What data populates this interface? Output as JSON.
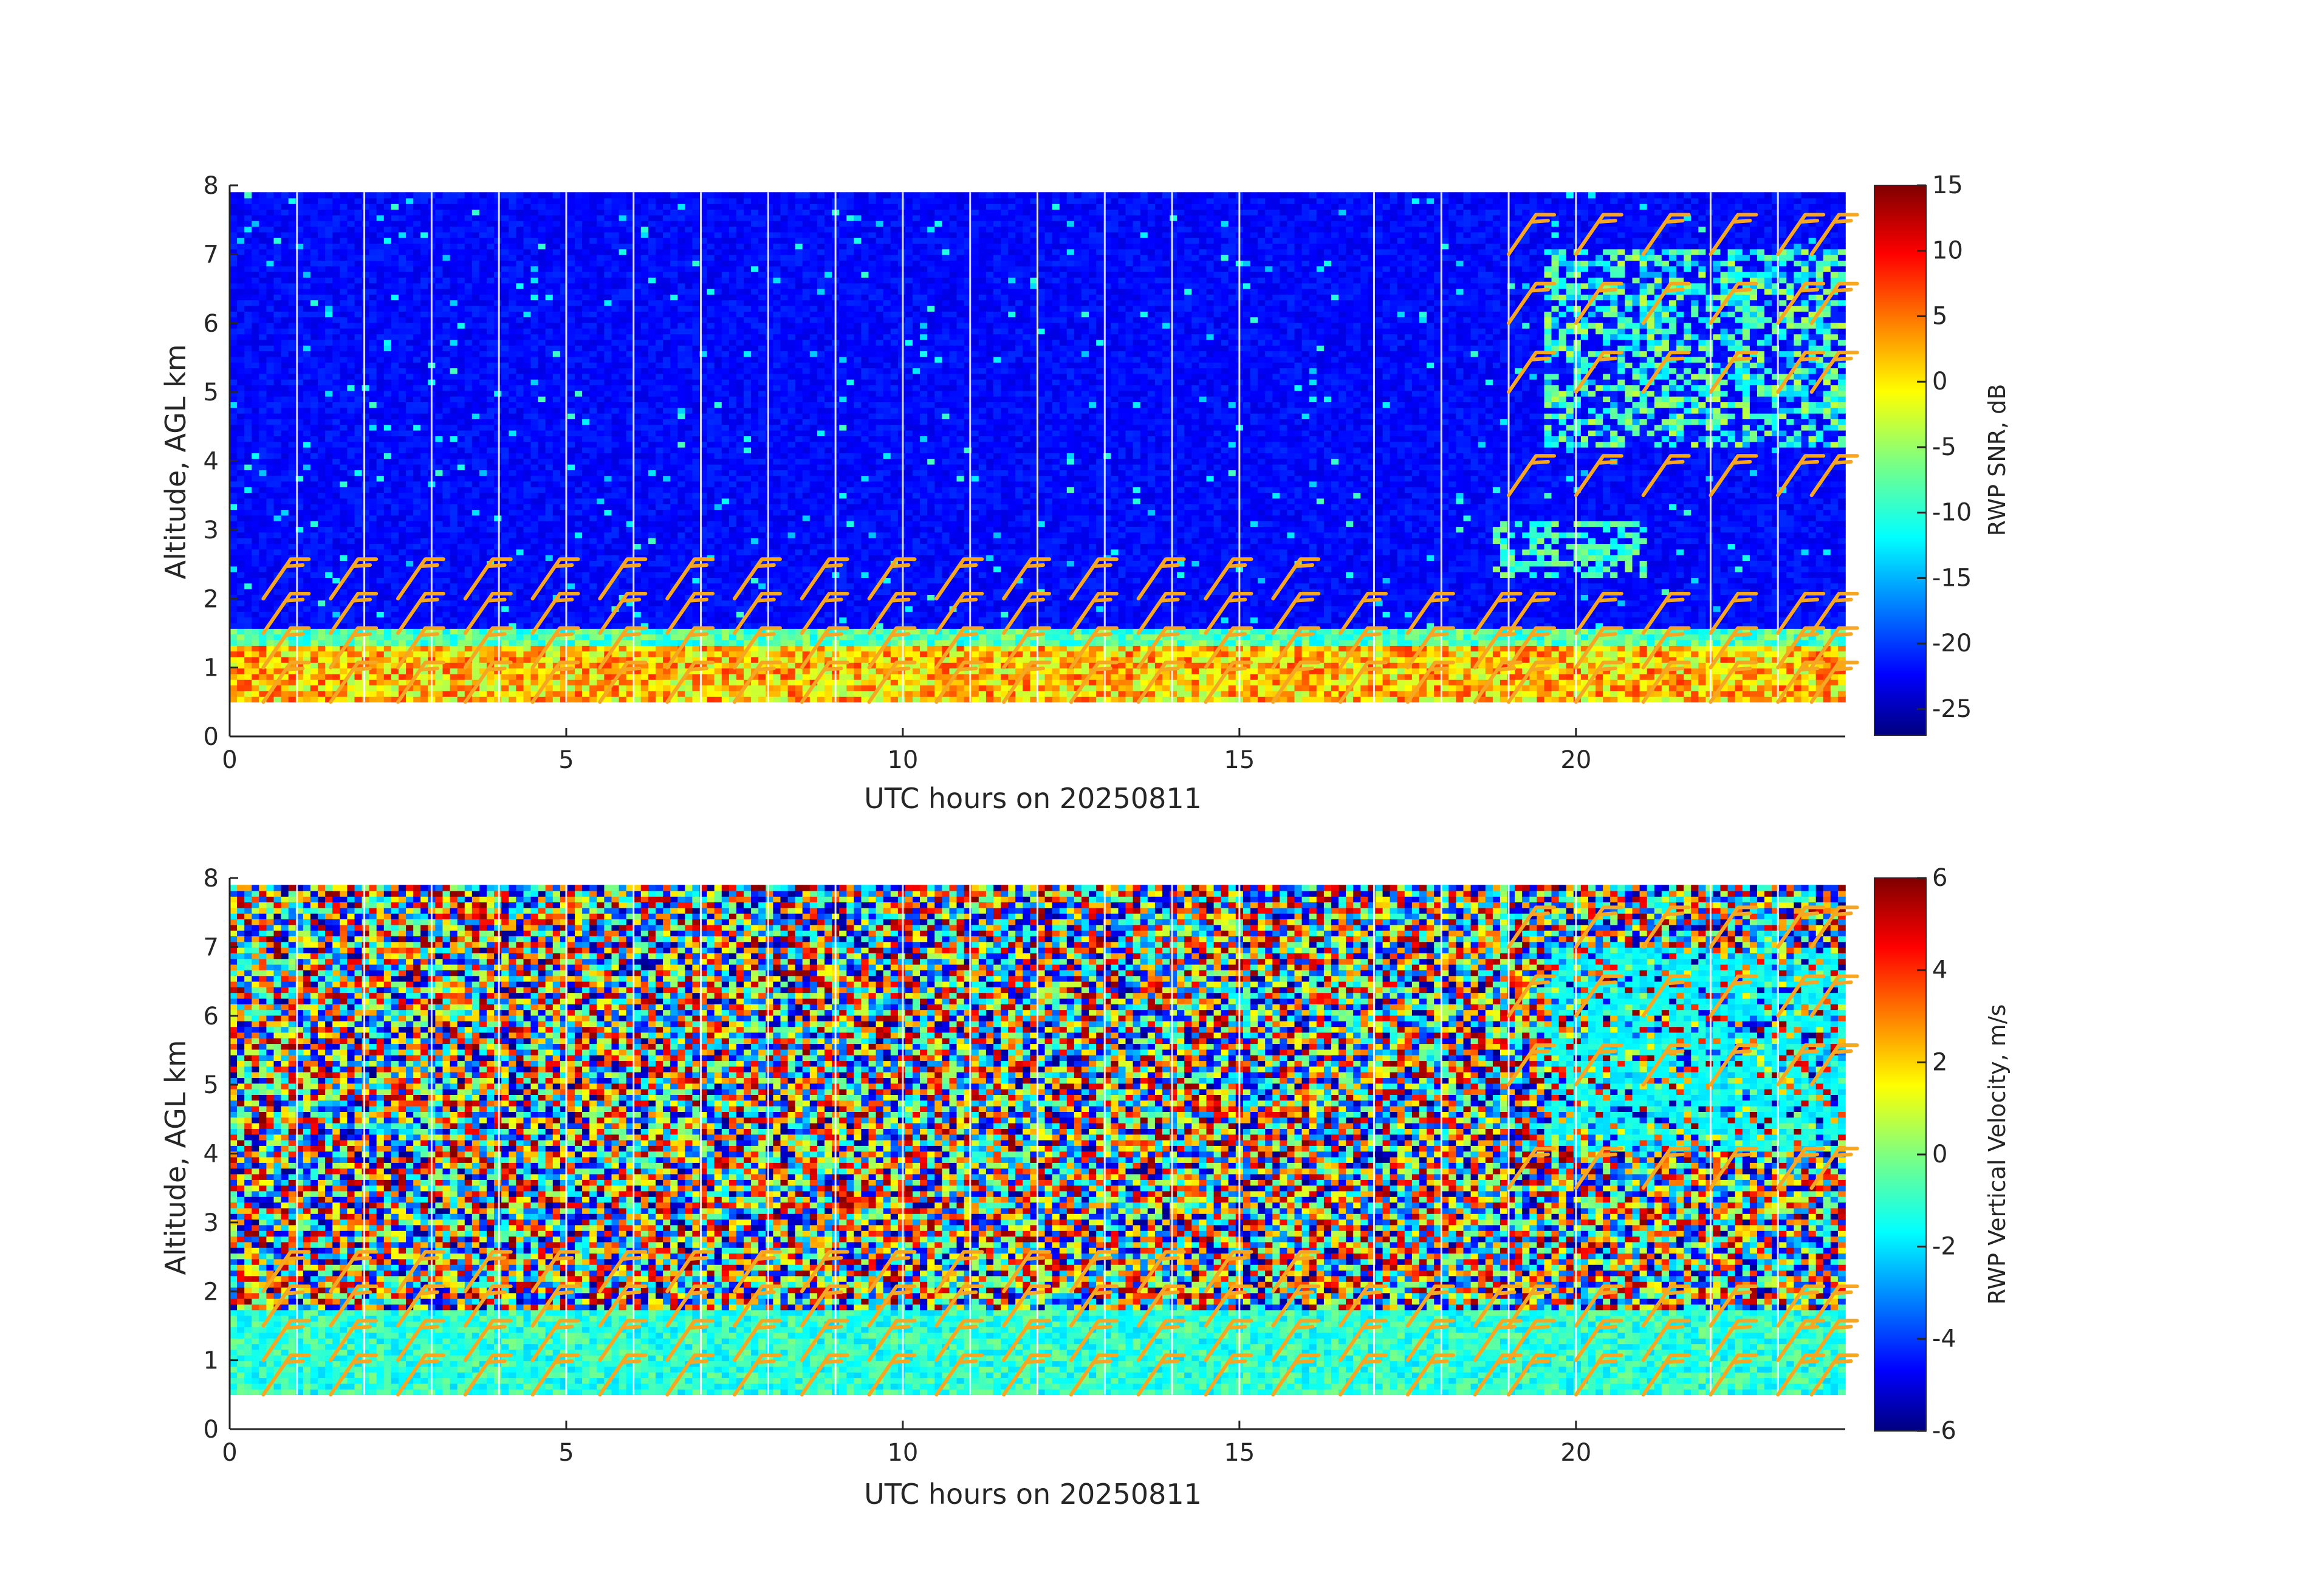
{
  "chart_data": [
    {
      "type": "heatmap",
      "title": "",
      "xlabel": "UTC hours on 20250811",
      "ylabel": "Altitude, AGL km",
      "xlim": [
        0,
        24
      ],
      "ylim": [
        0,
        8
      ],
      "xticks": [
        0,
        5,
        10,
        15,
        20
      ],
      "yticks": [
        0,
        1,
        2,
        3,
        4,
        5,
        6,
        7,
        8
      ],
      "colorbar": {
        "label": "RWP SNR, dB",
        "range": [
          -27,
          15
        ],
        "ticks": [
          15,
          10,
          5,
          0,
          -5,
          -10,
          -15,
          -20,
          -25
        ]
      },
      "colormap": "jet",
      "data_altitude_range_km": [
        0.5,
        7.9
      ],
      "overlay": "wind barbs (orange)",
      "boundary_layer_top_km": 1.6,
      "features": [
        {
          "name": "boundary layer echo",
          "x_range": [
            0,
            24
          ],
          "y_range": [
            0.5,
            1.6
          ],
          "value_db": [
            -5,
            8
          ]
        },
        {
          "name": "upper-level cloud echo",
          "x_range": [
            19.5,
            24
          ],
          "y_range": [
            4.2,
            7.1
          ],
          "value_db": [
            -15,
            -3
          ]
        },
        {
          "name": "mid-level echo",
          "x_range": [
            18.8,
            21
          ],
          "y_range": [
            2.3,
            3.1
          ],
          "value_db": [
            -12,
            -5
          ]
        }
      ],
      "data_gap_hours": [
        1,
        2,
        3,
        4,
        5,
        6,
        7,
        8,
        9,
        10,
        11,
        12,
        13,
        14,
        15,
        17,
        18,
        19,
        20,
        22,
        23
      ]
    },
    {
      "type": "heatmap",
      "title": "",
      "xlabel": "UTC hours on 20250811",
      "ylabel": "Altitude, AGL km",
      "xlim": [
        0,
        24
      ],
      "ylim": [
        0,
        8
      ],
      "xticks": [
        0,
        5,
        10,
        15,
        20
      ],
      "yticks": [
        0,
        1,
        2,
        3,
        4,
        5,
        6,
        7,
        8
      ],
      "colorbar": {
        "label": "RWP Vertical Velocity, m/s",
        "range": [
          -6,
          6
        ],
        "ticks": [
          6,
          4,
          2,
          0,
          -2,
          -4,
          -6
        ]
      },
      "colormap": "jet",
      "data_altitude_range_km": [
        0.5,
        7.9
      ],
      "overlay": "wind barbs (orange)",
      "boundary_layer_top_km": 1.7,
      "features": [
        {
          "name": "boundary layer velocity",
          "x_range": [
            0,
            24
          ],
          "y_range": [
            0.5,
            1.7
          ],
          "value_ms": [
            -2,
            0
          ]
        },
        {
          "name": "noise region",
          "x_range": [
            0,
            24
          ],
          "y_range": [
            1.7,
            7.9
          ],
          "value_ms": [
            -6,
            6
          ]
        },
        {
          "name": "cloud fall speed",
          "x_range": [
            19.5,
            24
          ],
          "y_range": [
            4.0,
            7.0
          ],
          "value_ms": [
            -2,
            -1
          ]
        }
      ],
      "data_gap_hours": [
        1,
        2,
        3,
        4,
        5,
        6,
        7,
        8,
        9,
        10,
        11,
        12,
        13,
        14,
        15,
        17,
        18,
        19,
        20,
        22,
        23
      ]
    }
  ],
  "wind_barbs": {
    "times_hours": [
      0.5,
      1.5,
      2.5,
      3.5,
      4.5,
      5.5,
      6.5,
      7.5,
      8.5,
      9.5,
      10.5,
      11.5,
      12.5,
      13.5,
      14.5,
      15.5,
      16.5,
      17.5,
      18.5,
      19.0,
      20.0,
      21.0,
      22.0,
      23.0,
      23.5
    ],
    "low_altitudes_km": [
      0.5,
      1.0,
      1.5,
      2.0,
      2.5,
      3.0
    ]
  }
}
